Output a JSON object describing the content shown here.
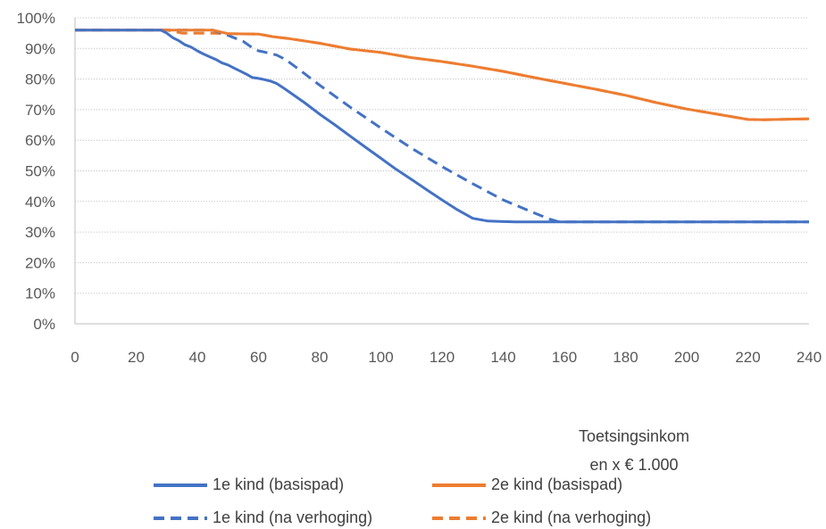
{
  "chart_data": {
    "type": "line",
    "xlabel": "Toetsingsinkomen x € 1.000",
    "xlabel_lines": [
      "Toetsingsinkom",
      "en x € 1.000"
    ],
    "xlim": [
      0,
      240
    ],
    "ylim": [
      0,
      100
    ],
    "x_ticks": [
      0,
      20,
      40,
      60,
      80,
      100,
      120,
      140,
      160,
      180,
      200,
      220,
      240
    ],
    "y_ticks": [
      0,
      10,
      20,
      30,
      40,
      50,
      60,
      70,
      80,
      90,
      100
    ],
    "y_tick_labels": [
      "0%",
      "10%",
      "20%",
      "30%",
      "40%",
      "50%",
      "60%",
      "70%",
      "80%",
      "90%",
      "100%"
    ],
    "grid": "horizontal dotted",
    "legend_position": "bottom",
    "series": [
      {
        "name": "1e kind (basispad)",
        "color": "#4472C4",
        "dash": "solid",
        "points": [
          [
            0,
            96
          ],
          [
            28,
            96
          ],
          [
            30,
            95
          ],
          [
            32,
            93.5
          ],
          [
            34,
            92.5
          ],
          [
            36,
            91.2
          ],
          [
            38,
            90.4
          ],
          [
            40,
            89.2
          ],
          [
            42,
            88.2
          ],
          [
            44,
            87.3
          ],
          [
            46,
            86.4
          ],
          [
            48,
            85.3
          ],
          [
            50,
            84.6
          ],
          [
            52,
            83.6
          ],
          [
            54,
            82.6
          ],
          [
            56,
            81.6
          ],
          [
            58,
            80.5
          ],
          [
            60,
            80.2
          ],
          [
            62,
            79.8
          ],
          [
            64,
            79.3
          ],
          [
            66,
            78.5
          ],
          [
            68,
            77.2
          ],
          [
            70,
            75.8
          ],
          [
            75,
            72.3
          ],
          [
            80,
            68.5
          ],
          [
            85,
            65
          ],
          [
            90,
            61.3
          ],
          [
            95,
            57.7
          ],
          [
            100,
            54.1
          ],
          [
            105,
            50.5
          ],
          [
            110,
            47.2
          ],
          [
            115,
            43.8
          ],
          [
            120,
            40.5
          ],
          [
            125,
            37.3
          ],
          [
            130,
            34.5
          ],
          [
            135,
            33.6
          ],
          [
            140,
            33.4
          ],
          [
            144,
            33.3
          ],
          [
            240,
            33.3
          ]
        ]
      },
      {
        "name": "2e kind (basispad)",
        "color": "#ED7D31",
        "dash": "solid",
        "points": [
          [
            0,
            96
          ],
          [
            30,
            96
          ],
          [
            45,
            96
          ],
          [
            50,
            94.8
          ],
          [
            60,
            94.7
          ],
          [
            65,
            93.8
          ],
          [
            70,
            93.2
          ],
          [
            80,
            91.7
          ],
          [
            90,
            89.8
          ],
          [
            100,
            88.7
          ],
          [
            110,
            87
          ],
          [
            120,
            85.7
          ],
          [
            130,
            84.2
          ],
          [
            140,
            82.5
          ],
          [
            150,
            80.5
          ],
          [
            160,
            78.6
          ],
          [
            170,
            76.7
          ],
          [
            180,
            74.7
          ],
          [
            190,
            72.3
          ],
          [
            200,
            70.2
          ],
          [
            210,
            68.5
          ],
          [
            220,
            66.8
          ],
          [
            225,
            66.7
          ],
          [
            230,
            66.8
          ],
          [
            240,
            67
          ]
        ]
      },
      {
        "name": "1e kind (na verhoging)",
        "color": "#4472C4",
        "dash": "dashed",
        "points": [
          [
            0,
            96
          ],
          [
            45,
            96
          ],
          [
            50,
            94.3
          ],
          [
            55,
            92.3
          ],
          [
            58,
            90.2
          ],
          [
            60,
            89.2
          ],
          [
            62,
            88.8
          ],
          [
            64,
            88.3
          ],
          [
            66,
            87.8
          ],
          [
            68,
            86.8
          ],
          [
            70,
            85.5
          ],
          [
            75,
            81.8
          ],
          [
            80,
            78
          ],
          [
            90,
            70.8
          ],
          [
            100,
            64
          ],
          [
            110,
            57.4
          ],
          [
            120,
            51.4
          ],
          [
            130,
            45.8
          ],
          [
            140,
            40.5
          ],
          [
            150,
            36.3
          ],
          [
            155,
            34.3
          ],
          [
            158,
            33.4
          ],
          [
            160,
            33.3
          ],
          [
            240,
            33.3
          ]
        ]
      },
      {
        "name": "2e kind (na verhoging)",
        "color": "#ED7D31",
        "dash": "dashed",
        "points": [
          [
            0,
            96
          ],
          [
            30,
            96
          ],
          [
            35,
            95
          ],
          [
            45,
            95
          ],
          [
            50,
            94.8
          ],
          [
            60,
            94.7
          ],
          [
            65,
            93.8
          ],
          [
            70,
            93.2
          ],
          [
            80,
            91.7
          ],
          [
            90,
            89.8
          ],
          [
            100,
            88.7
          ],
          [
            110,
            87
          ],
          [
            120,
            85.7
          ],
          [
            130,
            84.2
          ],
          [
            140,
            82.5
          ],
          [
            150,
            80.5
          ],
          [
            160,
            78.6
          ],
          [
            170,
            76.7
          ],
          [
            180,
            74.7
          ],
          [
            190,
            72.3
          ],
          [
            200,
            70.2
          ],
          [
            210,
            68.5
          ],
          [
            220,
            66.8
          ],
          [
            225,
            66.7
          ],
          [
            230,
            66.8
          ],
          [
            240,
            67
          ]
        ]
      }
    ]
  }
}
